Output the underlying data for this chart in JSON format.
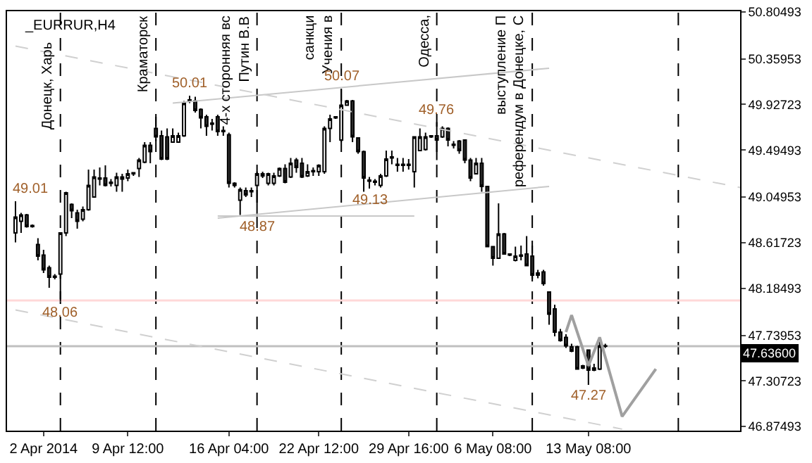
{
  "chart_data": {
    "type": "candlestick",
    "title": "_EURRUR,H4",
    "categories": [
      null,
      null,
      null,
      null,
      null,
      "2 Apr 2014",
      null,
      null,
      null,
      null,
      null,
      null,
      null,
      null,
      null,
      null,
      null,
      null,
      null,
      null,
      "9 Apr 12:00",
      null,
      null,
      null,
      null,
      null,
      null,
      null,
      null,
      null,
      null,
      null,
      null,
      null,
      null,
      null,
      null,
      null,
      "16 Apr 04:00",
      null,
      null,
      null,
      null,
      null,
      null,
      null,
      null,
      null,
      null,
      null,
      null,
      null,
      null,
      null,
      "22 Apr 12:00",
      null,
      null,
      null,
      null,
      null,
      null,
      null,
      null,
      null,
      null,
      null,
      null,
      null,
      null,
      null,
      "29 Apr 16:00",
      null,
      null,
      null,
      null,
      null,
      null,
      null,
      null,
      null,
      null,
      null,
      null,
      null,
      null,
      "6 May 08:00",
      null,
      null,
      null,
      null,
      null,
      null,
      null,
      null,
      null,
      null,
      null,
      null,
      null,
      null,
      null,
      null,
      "13 May 08:00",
      null,
      null,
      null,
      null,
      null,
      null,
      null,
      null,
      null,
      null,
      null,
      null,
      null,
      null,
      null,
      null,
      null,
      null,
      null,
      null,
      null,
      null,
      null,
      null,
      null,
      null,
      null
    ],
    "ohlc": [
      [
        48.71,
        49.01,
        48.62,
        48.86
      ],
      [
        48.82,
        48.9,
        48.71,
        48.88
      ],
      [
        48.88,
        48.89,
        48.76,
        48.77
      ],
      [
        48.77,
        48.79,
        48.76,
        48.78
      ],
      [
        48.6,
        48.66,
        48.45,
        48.49
      ],
      [
        48.5,
        48.55,
        48.33,
        48.36
      ],
      [
        48.38,
        48.4,
        48.19,
        48.29
      ],
      [
        48.29,
        48.32,
        48.27,
        48.3
      ],
      [
        48.32,
        48.71,
        48.06,
        48.71
      ],
      [
        48.71,
        49.1,
        48.68,
        49.09
      ],
      [
        48.98,
        48.99,
        48.85,
        48.92
      ],
      [
        48.9,
        48.93,
        48.75,
        48.82
      ],
      [
        48.84,
        48.96,
        48.82,
        48.93
      ],
      [
        48.93,
        49.31,
        48.92,
        49.16
      ],
      [
        49.05,
        49.31,
        49.05,
        49.24
      ],
      [
        49.23,
        49.33,
        49.16,
        49.22
      ],
      [
        49.23,
        49.35,
        49.15,
        49.16
      ],
      [
        49.18,
        49.22,
        49.15,
        49.19
      ],
      [
        49.16,
        49.28,
        49.1,
        49.24
      ],
      [
        49.22,
        49.27,
        49.1,
        49.24
      ],
      [
        49.23,
        49.31,
        49.2,
        49.27
      ],
      [
        49.27,
        49.28,
        49.25,
        49.28
      ],
      [
        49.32,
        49.42,
        49.24,
        49.4
      ],
      [
        49.38,
        49.57,
        49.37,
        49.54
      ],
      [
        49.54,
        49.57,
        49.37,
        49.48
      ],
      [
        49.7,
        49.81,
        49.58,
        49.62
      ],
      [
        49.63,
        49.68,
        49.4,
        49.41
      ],
      [
        49.62,
        49.7,
        49.4,
        49.41
      ],
      [
        49.57,
        49.7,
        49.57,
        49.63
      ],
      [
        49.57,
        49.66,
        49.57,
        49.63
      ],
      [
        49.63,
        49.96,
        49.62,
        49.94
      ],
      [
        49.96,
        50.01,
        49.94,
        49.97
      ],
      [
        49.96,
        50.0,
        49.85,
        49.87
      ],
      [
        49.88,
        49.89,
        49.7,
        49.8
      ],
      [
        49.81,
        49.83,
        49.63,
        49.72
      ],
      [
        49.74,
        49.79,
        49.68,
        49.75
      ],
      [
        49.81,
        49.83,
        49.63,
        49.67
      ],
      [
        49.67,
        49.72,
        49.63,
        49.68
      ],
      [
        49.64,
        49.66,
        49.14,
        49.18
      ],
      [
        49.18,
        49.19,
        49.14,
        49.16
      ],
      [
        49.02,
        49.14,
        48.88,
        49.12
      ],
      [
        49.11,
        49.14,
        49.05,
        49.07
      ],
      [
        49.1,
        49.14,
        49.05,
        49.11
      ],
      [
        49.16,
        49.29,
        48.87,
        49.27
      ],
      [
        49.25,
        49.29,
        49.23,
        49.27
      ],
      [
        49.18,
        49.28,
        49.16,
        49.27
      ],
      [
        49.18,
        49.28,
        49.16,
        49.25
      ],
      [
        49.25,
        49.33,
        49.24,
        49.32
      ],
      [
        49.32,
        49.36,
        49.18,
        49.19
      ],
      [
        49.24,
        49.42,
        49.23,
        49.37
      ],
      [
        49.4,
        49.42,
        49.28,
        49.33
      ],
      [
        49.37,
        49.42,
        49.23,
        49.24
      ],
      [
        49.25,
        49.36,
        49.24,
        49.29
      ],
      [
        49.29,
        49.33,
        49.25,
        49.3
      ],
      [
        49.29,
        49.36,
        49.25,
        49.35
      ],
      [
        49.29,
        49.72,
        49.27,
        49.7
      ],
      [
        49.7,
        49.83,
        49.57,
        49.79
      ],
      [
        49.8,
        49.81,
        49.79,
        49.81
      ],
      [
        49.59,
        50.07,
        49.57,
        49.92
      ],
      [
        49.92,
        49.97,
        49.92,
        49.96
      ],
      [
        49.96,
        49.97,
        49.57,
        49.62
      ],
      [
        49.61,
        49.61,
        49.46,
        49.48
      ],
      [
        49.48,
        49.49,
        49.1,
        49.23
      ],
      [
        49.2,
        49.24,
        49.13,
        49.21
      ],
      [
        49.19,
        49.22,
        49.16,
        49.2
      ],
      [
        49.16,
        49.27,
        49.14,
        49.25
      ],
      [
        49.25,
        49.49,
        49.24,
        49.41
      ],
      [
        49.42,
        49.49,
        49.36,
        49.43
      ],
      [
        49.35,
        49.42,
        49.29,
        49.36
      ],
      [
        49.35,
        49.42,
        49.29,
        49.36
      ],
      [
        49.35,
        49.41,
        49.31,
        49.36
      ],
      [
        49.29,
        49.62,
        49.14,
        49.62
      ],
      [
        49.49,
        49.7,
        49.49,
        49.62
      ],
      [
        49.5,
        49.66,
        49.49,
        49.62
      ],
      [
        49.62,
        49.63,
        49.61,
        49.63
      ],
      [
        49.63,
        49.76,
        49.4,
        49.59
      ],
      [
        49.62,
        49.72,
        49.61,
        49.7
      ],
      [
        49.7,
        49.71,
        49.53,
        49.59
      ],
      [
        49.54,
        49.58,
        49.51,
        49.55
      ],
      [
        49.58,
        49.59,
        49.46,
        49.49
      ],
      [
        49.59,
        49.59,
        49.37,
        49.4
      ],
      [
        49.4,
        49.42,
        49.2,
        49.23
      ],
      [
        49.27,
        49.42,
        49.27,
        49.37
      ],
      [
        49.37,
        49.42,
        49.1,
        49.15
      ],
      [
        49.15,
        49.15,
        48.58,
        48.58
      ],
      [
        48.58,
        48.58,
        48.4,
        48.47
      ],
      [
        48.47,
        48.99,
        48.47,
        48.7
      ],
      [
        48.7,
        48.71,
        48.51,
        48.51
      ],
      [
        48.5,
        48.51,
        48.49,
        48.51
      ],
      [
        48.45,
        48.58,
        48.44,
        48.49
      ],
      [
        48.49,
        48.59,
        48.45,
        48.5
      ],
      [
        48.51,
        48.68,
        48.4,
        48.4
      ],
      [
        48.49,
        48.59,
        48.25,
        48.31
      ],
      [
        48.31,
        48.36,
        48.28,
        48.33
      ],
      [
        48.34,
        48.36,
        48.21,
        48.23
      ],
      [
        48.15,
        48.15,
        47.84,
        47.94
      ],
      [
        47.99,
        48.03,
        47.73,
        47.77
      ],
      [
        47.77,
        47.8,
        47.68,
        47.69
      ],
      [
        47.72,
        47.75,
        47.62,
        47.64
      ],
      [
        47.63,
        47.66,
        47.58,
        47.59
      ],
      [
        47.63,
        47.64,
        47.42,
        47.42
      ],
      [
        47.45,
        47.46,
        47.42,
        47.43
      ],
      [
        47.6,
        47.6,
        47.27,
        47.41
      ],
      [
        47.41,
        47.47,
        47.4,
        47.43
      ],
      [
        47.42,
        47.72,
        47.41,
        47.64
      ],
      [
        47.64,
        47.66,
        47.62,
        47.636
      ],
      null,
      null,
      null,
      null,
      null,
      null,
      null,
      null,
      null,
      null,
      null,
      null,
      null,
      null,
      null,
      null,
      null,
      null,
      null,
      null,
      null,
      null,
      null,
      null
    ],
    "ylim": [
      46.836,
      50.81
    ],
    "yticks": [
      50.80493,
      50.35953,
      49.92723,
      49.49493,
      49.04953,
      48.61723,
      48.18493,
      47.73953,
      47.30723,
      46.87493
    ],
    "series": [
      {
        "type": "line",
        "color": "#c8c8c8",
        "line_style": "solid",
        "values": [
          null,
          null,
          null,
          null,
          null,
          null,
          null,
          null,
          null,
          null,
          null,
          null,
          null,
          null,
          null,
          null,
          null,
          null,
          null,
          null,
          null,
          null,
          null,
          null,
          null,
          null,
          null,
          null,
          49.94,
          null,
          null,
          null,
          null,
          null,
          null,
          null,
          null,
          null,
          null,
          null,
          null,
          null,
          null,
          null,
          null,
          null,
          null,
          null,
          null,
          null,
          null,
          null,
          null,
          null,
          null,
          null,
          null,
          null,
          null,
          null,
          null,
          null,
          null,
          null,
          null,
          null,
          null,
          null,
          null,
          null,
          null,
          null,
          null,
          null,
          null,
          null,
          null,
          null,
          null,
          null,
          null,
          null,
          null,
          null,
          null,
          null,
          null,
          null,
          null,
          null,
          null,
          null,
          null,
          null,
          null,
          50.27,
          null,
          null,
          null,
          null,
          null,
          null,
          null,
          null,
          null,
          null,
          null,
          null,
          null,
          null,
          null,
          null,
          null,
          null,
          null,
          null,
          null,
          null,
          null,
          null,
          null,
          null,
          null,
          null,
          null,
          null,
          null,
          null,
          null,
          null
        ]
      },
      {
        "type": "line",
        "color": "#c8c8c8",
        "line_style": "solid",
        "values": [
          null,
          null,
          null,
          null,
          null,
          null,
          null,
          null,
          null,
          null,
          null,
          null,
          null,
          null,
          null,
          null,
          null,
          null,
          null,
          null,
          null,
          null,
          null,
          null,
          null,
          null,
          null,
          null,
          null,
          null,
          null,
          null,
          null,
          null,
          null,
          null,
          48.85,
          null,
          null,
          null,
          null,
          null,
          null,
          null,
          null,
          null,
          null,
          null,
          null,
          null,
          null,
          null,
          null,
          null,
          null,
          null,
          null,
          null,
          null,
          null,
          null,
          null,
          null,
          null,
          null,
          null,
          null,
          null,
          null,
          null,
          null,
          null,
          null,
          null,
          null,
          null,
          null,
          null,
          null,
          null,
          null,
          null,
          null,
          null,
          null,
          null,
          null,
          null,
          null,
          null,
          null,
          null,
          null,
          null,
          null,
          49.15,
          null,
          null,
          null,
          null,
          null,
          null,
          null,
          null,
          null,
          null,
          null,
          null,
          null,
          null,
          null,
          null,
          null,
          null,
          null,
          null,
          null,
          null,
          null,
          null,
          null,
          null,
          null,
          null,
          null,
          null,
          null,
          null,
          null,
          null
        ]
      },
      {
        "type": "line",
        "color": "#c8c8c8",
        "line_style": "solid",
        "values": [
          null,
          null,
          null,
          null,
          null,
          null,
          null,
          null,
          null,
          null,
          null,
          null,
          null,
          null,
          null,
          null,
          null,
          null,
          null,
          null,
          null,
          null,
          null,
          null,
          null,
          null,
          null,
          null,
          null,
          null,
          null,
          null,
          null,
          null,
          null,
          null,
          48.87,
          null,
          null,
          null,
          null,
          null,
          null,
          null,
          null,
          null,
          null,
          null,
          null,
          null,
          null,
          null,
          null,
          null,
          null,
          null,
          null,
          null,
          null,
          null,
          null,
          null,
          null,
          null,
          null,
          null,
          null,
          null,
          null,
          null,
          null,
          48.87,
          null,
          null,
          null,
          null,
          null,
          null,
          null,
          null,
          null,
          null,
          null,
          null,
          null,
          null,
          null,
          null,
          null,
          null,
          null,
          null,
          null,
          null,
          null,
          null,
          null,
          null,
          null,
          null,
          null,
          null,
          null,
          null,
          null,
          null,
          null,
          null,
          null,
          null,
          null,
          null,
          null,
          null,
          null,
          null,
          null,
          null,
          null,
          null,
          null,
          null,
          null,
          null,
          null,
          null,
          null,
          null,
          null,
          null
        ]
      },
      {
        "type": "line",
        "color": "#d0d0d0",
        "line_style": "dashed",
        "values": [
          50.48,
          null,
          null,
          null,
          null,
          null,
          null,
          null,
          null,
          null,
          null,
          null,
          null,
          null,
          null,
          null,
          null,
          null,
          null,
          null,
          null,
          null,
          null,
          null,
          null,
          null,
          null,
          null,
          null,
          null,
          null,
          null,
          null,
          null,
          null,
          null,
          null,
          null,
          null,
          null,
          null,
          null,
          null,
          null,
          null,
          null,
          null,
          null,
          null,
          null,
          null,
          null,
          null,
          null,
          null,
          null,
          null,
          null,
          null,
          null,
          null,
          null,
          null,
          null,
          null,
          null,
          null,
          null,
          null,
          null,
          null,
          null,
          null,
          null,
          null,
          null,
          null,
          null,
          null,
          null,
          null,
          null,
          null,
          null,
          null,
          null,
          null,
          null,
          null,
          null,
          null,
          null,
          null,
          null,
          null,
          null,
          null,
          null,
          null,
          null,
          null,
          null,
          null,
          null,
          null,
          null,
          null,
          null,
          null,
          null,
          null,
          null,
          null,
          null,
          null,
          null,
          null,
          null,
          null,
          null,
          null,
          null,
          null,
          null,
          null,
          null,
          null,
          null,
          null,
          49.14
        ]
      },
      {
        "type": "line",
        "color": "#d0d0d0",
        "line_style": "dashed",
        "values": [
          47.98,
          null,
          null,
          null,
          null,
          null,
          null,
          null,
          null,
          null,
          null,
          null,
          null,
          null,
          null,
          null,
          null,
          null,
          null,
          null,
          null,
          null,
          null,
          null,
          null,
          null,
          null,
          null,
          null,
          null,
          null,
          null,
          null,
          null,
          null,
          null,
          null,
          null,
          null,
          null,
          null,
          null,
          null,
          null,
          null,
          null,
          null,
          null,
          null,
          null,
          null,
          null,
          null,
          null,
          null,
          null,
          null,
          null,
          null,
          null,
          null,
          null,
          null,
          null,
          null,
          null,
          null,
          null,
          null,
          null,
          null,
          null,
          null,
          null,
          null,
          null,
          null,
          null,
          null,
          null,
          null,
          null,
          null,
          null,
          null,
          null,
          null,
          null,
          null,
          null,
          null,
          null,
          null,
          null,
          null,
          null,
          null,
          null,
          null,
          null,
          null,
          null,
          null,
          null,
          null,
          null,
          null,
          null,
          46.85,
          null,
          null,
          null,
          null,
          null,
          null,
          null,
          null,
          null,
          null,
          null,
          null,
          null,
          null,
          null,
          null,
          null,
          null,
          null,
          null,
          null
        ]
      },
      {
        "type": "line",
        "color": "#a0a0a0",
        "line_style": "solid",
        "values": [
          null,
          null,
          null,
          null,
          null,
          null,
          null,
          null,
          null,
          null,
          null,
          null,
          null,
          null,
          null,
          null,
          null,
          null,
          null,
          null,
          null,
          null,
          null,
          null,
          null,
          null,
          null,
          null,
          null,
          null,
          null,
          null,
          null,
          null,
          null,
          null,
          null,
          null,
          null,
          null,
          null,
          null,
          null,
          null,
          null,
          null,
          null,
          null,
          null,
          null,
          null,
          null,
          null,
          null,
          null,
          null,
          null,
          null,
          null,
          null,
          null,
          null,
          null,
          null,
          null,
          null,
          null,
          null,
          null,
          null,
          null,
          null,
          null,
          null,
          null,
          null,
          null,
          null,
          null,
          null,
          null,
          null,
          null,
          null,
          null,
          null,
          null,
          null,
          null,
          null,
          null,
          null,
          null,
          null,
          null,
          null,
          null,
          null,
          47.77,
          47.93,
          null,
          null,
          47.45,
          null,
          47.72,
          null,
          null,
          null,
          46.97,
          null,
          null,
          null,
          null,
          null,
          47.42,
          null,
          null,
          null,
          null,
          null,
          null,
          null,
          null,
          null,
          null,
          null,
          null,
          null,
          null,
          null
        ]
      }
    ],
    "ref_lines": [
      {
        "axis": "y",
        "value": 48.07,
        "color": "#ffd8d8",
        "line_style": "solid"
      },
      {
        "axis": "y",
        "value": 47.636,
        "label": "47.63600",
        "color": "#c0c0c0",
        "line_style": "solid"
      }
    ],
    "annotations": [
      "Донецк, Харь",
      "Краматорск",
      "Путин В.В",
      "4-х сторонняя вс",
      "Учения в",
      "санкци",
      "Одесса,",
      "референдум в Донецке, С",
      "выступление П",
      "49.01",
      {
        "text": "48.06",
        "y": 48.06
      },
      {
        "text": "50.01",
        "y": 50.01
      },
      {
        "text": "48.87",
        "y": 48.87
      },
      {
        "text": "50.07",
        "y": 50.07
      },
      {
        "text": "49.13",
        "y": 49.13
      },
      {
        "text": "49.76",
        "y": 49.76
      },
      {
        "text": "47.27",
        "y": 47.27
      }
    ],
    "grid": false
  }
}
